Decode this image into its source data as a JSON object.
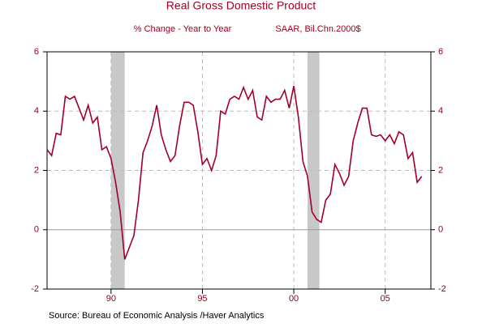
{
  "chart_data": {
    "type": "line",
    "title": "Real Gross Domestic Product",
    "subtitle": "% Change - Year to Year",
    "units_note": "SAAR, Bil.Chn.2000$",
    "source": "Source:  Bureau of Economic Analysis /Haver Analytics",
    "x": [
      1987.0,
      1987.25,
      1987.5,
      1987.75,
      1988.0,
      1988.25,
      1988.5,
      1988.75,
      1989.0,
      1989.25,
      1989.5,
      1989.75,
      1990.0,
      1990.25,
      1990.5,
      1990.75,
      1991.0,
      1991.25,
      1991.5,
      1991.75,
      1992.0,
      1992.25,
      1992.5,
      1992.75,
      1993.0,
      1993.25,
      1993.5,
      1993.75,
      1994.0,
      1994.25,
      1994.5,
      1994.75,
      1995.0,
      1995.25,
      1995.5,
      1995.75,
      1996.0,
      1996.25,
      1996.5,
      1996.75,
      1997.0,
      1997.25,
      1997.5,
      1997.75,
      1998.0,
      1998.25,
      1998.5,
      1998.75,
      1999.0,
      1999.25,
      1999.5,
      1999.75,
      2000.0,
      2000.25,
      2000.5,
      2000.75,
      2001.0,
      2001.25,
      2001.5,
      2001.75,
      2002.0,
      2002.25,
      2002.5,
      2002.75,
      2003.0,
      2003.25,
      2003.5,
      2003.75,
      2004.0,
      2004.25,
      2004.5,
      2004.75,
      2005.0,
      2005.25,
      2005.5,
      2005.75,
      2006.0,
      2006.25,
      2006.5,
      2006.75,
      2007.0,
      2007.25,
      2007.5
    ],
    "series": [
      {
        "name": "Real Gross Domestic Product",
        "color": "#a0002a",
        "values": [
          2.7,
          2.5,
          3.25,
          3.2,
          4.5,
          4.4,
          4.5,
          4.1,
          3.7,
          4.2,
          3.6,
          3.8,
          2.7,
          2.8,
          2.4,
          1.6,
          0.6,
          -1.0,
          -0.6,
          -0.2,
          1.0,
          2.6,
          3.0,
          3.5,
          4.2,
          3.2,
          2.7,
          2.3,
          2.5,
          3.5,
          4.3,
          4.3,
          4.2,
          3.3,
          2.2,
          2.4,
          2.0,
          2.5,
          4.0,
          3.9,
          4.4,
          4.5,
          4.4,
          4.8,
          4.4,
          4.7,
          3.8,
          3.7,
          4.5,
          4.3,
          4.4,
          4.4,
          4.7,
          4.1,
          4.85,
          3.8,
          2.3,
          1.8,
          0.6,
          0.35,
          0.25,
          1.0,
          1.2,
          2.2,
          1.9,
          1.5,
          1.8,
          3.0,
          3.6,
          4.1,
          4.1,
          3.2,
          3.15,
          3.2,
          3.0,
          3.2,
          2.9,
          3.3,
          3.2,
          2.4,
          2.6,
          1.6,
          1.8
        ]
      }
    ],
    "recessions": [
      [
        1990.5,
        1991.25
      ],
      [
        2001.25,
        2001.9
      ]
    ],
    "recession_color": "#c8c8c8",
    "xlim": [
      1987,
      2008
    ],
    "xticks": [
      {
        "value": 1990.5,
        "label": "90"
      },
      {
        "value": 1995.5,
        "label": "95"
      },
      {
        "value": 2000.5,
        "label": "00"
      },
      {
        "value": 2005.5,
        "label": "05"
      }
    ],
    "ylim": [
      -2,
      6
    ],
    "yticks": [
      -2,
      0,
      2,
      4,
      6
    ],
    "y2lim": [
      -2,
      6
    ],
    "y2ticks": [
      -2,
      0,
      2,
      4,
      6
    ],
    "grid": true
  }
}
